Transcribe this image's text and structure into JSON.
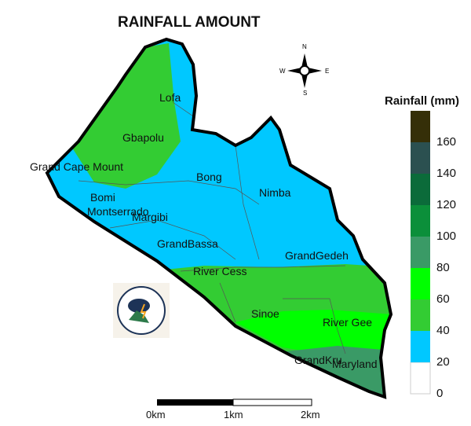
{
  "title": "RAINFALL AMOUNT",
  "legend": {
    "title": "Rainfall (mm)",
    "ticks": [
      "0",
      "20",
      "40",
      "60",
      "80",
      "100",
      "120",
      "140",
      "160"
    ],
    "bins": [
      {
        "min": 0,
        "max": 20,
        "color": "#ffffff"
      },
      {
        "min": 20,
        "max": 40,
        "color": "#00c8ff"
      },
      {
        "min": 40,
        "max": 60,
        "color": "#33cc33"
      },
      {
        "min": 60,
        "max": 80,
        "color": "#00ff00"
      },
      {
        "min": 80,
        "max": 100,
        "color": "#3a9a66"
      },
      {
        "min": 100,
        "max": 120,
        "color": "#0b8f3a"
      },
      {
        "min": 120,
        "max": 140,
        "color": "#0b6b3a"
      },
      {
        "min": 140,
        "max": 160,
        "color": "#2b5050"
      },
      {
        "min": 160,
        "max": 180,
        "color": "#352f08"
      }
    ]
  },
  "counties": [
    "Lofa",
    "Gbapolu",
    "Grand Cape Mount",
    "Bong",
    "Bomi",
    "Montserrado",
    "Margibi",
    "Nimba",
    "GrandBassa",
    "GrandGedeh",
    "River Cess",
    "Sinoe",
    "River Gee",
    "GrandKru",
    "Maryland"
  ],
  "compass": {
    "n": "N",
    "s": "S",
    "e": "E",
    "w": "W"
  },
  "scale": [
    "0km",
    "1km",
    "2km"
  ],
  "logo": "LIBERIA METEOROLOGICAL SERVICE"
}
